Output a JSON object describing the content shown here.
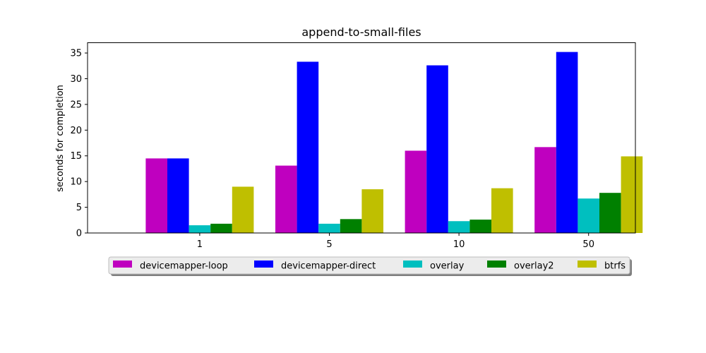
{
  "chart_data": {
    "type": "bar",
    "title": "append-to-small-files",
    "xlabel": "",
    "ylabel": "seconds for completion",
    "categories": [
      "1",
      "5",
      "10",
      "50"
    ],
    "ylim": [
      0,
      37
    ],
    "yticks": [
      0,
      5,
      10,
      15,
      20,
      25,
      30,
      35
    ],
    "grid": false,
    "legend_placement": "bottom-center",
    "series": [
      {
        "name": "devicemapper-loop",
        "color": "#bf00bf",
        "values": [
          14.5,
          13.1,
          16.0,
          16.7
        ]
      },
      {
        "name": "devicemapper-direct",
        "color": "#0000ff",
        "values": [
          14.5,
          33.3,
          32.6,
          35.2
        ]
      },
      {
        "name": "overlay",
        "color": "#00bfbf",
        "values": [
          1.5,
          1.8,
          2.3,
          6.7
        ]
      },
      {
        "name": "overlay2",
        "color": "#008000",
        "values": [
          1.8,
          2.7,
          2.6,
          7.8
        ]
      },
      {
        "name": "btrfs",
        "color": "#bfbf00",
        "values": [
          9.0,
          8.5,
          8.7,
          14.9
        ]
      }
    ]
  }
}
